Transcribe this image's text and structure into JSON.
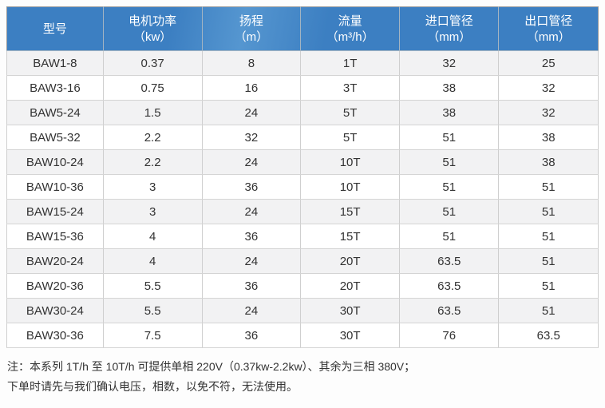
{
  "table": {
    "columns": [
      {
        "label": "型号",
        "unit": ""
      },
      {
        "label": "电机功率",
        "unit": "（kw）"
      },
      {
        "label": "扬程",
        "unit": "（m）"
      },
      {
        "label": "流量",
        "unit": "（m³/h）"
      },
      {
        "label": "进口管径",
        "unit": "（mm）"
      },
      {
        "label": "出口管径",
        "unit": "（mm）"
      }
    ],
    "rows": [
      [
        "BAW1-8",
        "0.37",
        "8",
        "1T",
        "32",
        "25"
      ],
      [
        "BAW3-16",
        "0.75",
        "16",
        "3T",
        "38",
        "32"
      ],
      [
        "BAW5-24",
        "1.5",
        "24",
        "5T",
        "38",
        "32"
      ],
      [
        "BAW5-32",
        "2.2",
        "32",
        "5T",
        "51",
        "38"
      ],
      [
        "BAW10-24",
        "2.2",
        "24",
        "10T",
        "51",
        "38"
      ],
      [
        "BAW10-36",
        "3",
        "36",
        "10T",
        "51",
        "51"
      ],
      [
        "BAW15-24",
        "3",
        "24",
        "15T",
        "51",
        "51"
      ],
      [
        "BAW15-36",
        "4",
        "36",
        "15T",
        "51",
        "51"
      ],
      [
        "BAW20-24",
        "4",
        "24",
        "20T",
        "63.5",
        "51"
      ],
      [
        "BAW20-36",
        "5.5",
        "36",
        "20T",
        "63.5",
        "51"
      ],
      [
        "BAW30-24",
        "5.5",
        "24",
        "30T",
        "63.5",
        "51"
      ],
      [
        "BAW30-36",
        "7.5",
        "36",
        "30T",
        "76",
        "63.5"
      ]
    ]
  },
  "notes": {
    "line1": "注：本系列 1T/h 至 10T/h 可提供单相 220V（0.37kw-2.2kw）、其余为三相 380V；",
    "line2": "下单时请先与我们确认电压，相数，以免不符，无法使用。"
  },
  "colors": {
    "header_bg": "#3d80c3",
    "header_text": "#ffffff",
    "row_alt_bg": "#f2f2f3",
    "row_bg": "#ffffff",
    "cell_border": "#d4d4d4",
    "outer_border": "#9b9b9b",
    "body_text": "#333333"
  }
}
